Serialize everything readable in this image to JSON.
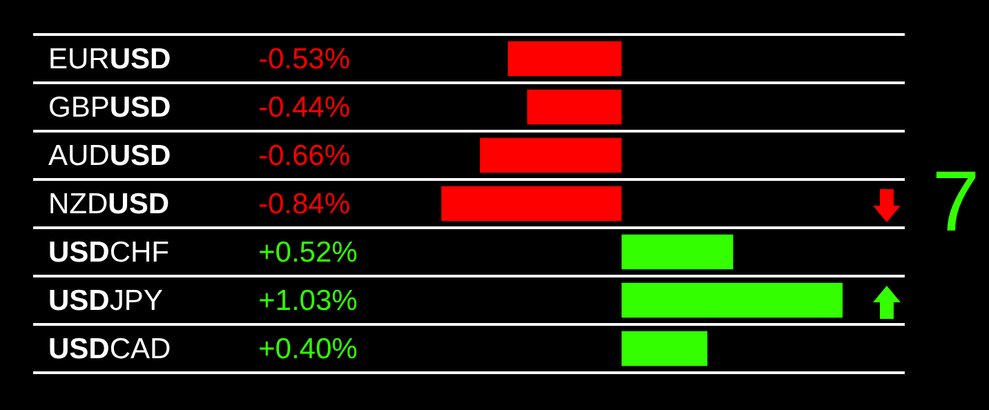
{
  "chart_data": {
    "type": "bar",
    "orientation": "horizontal",
    "categories": [
      "EURUSD",
      "GBPUSD",
      "AUDUSD",
      "NZDUSD",
      "USDCHF",
      "USDJPY",
      "USDCAD"
    ],
    "values": [
      -0.53,
      -0.44,
      -0.66,
      -0.84,
      0.52,
      1.03,
      0.4
    ],
    "value_labels": [
      "-0.53%",
      "-0.44%",
      "-0.66%",
      "-0.84%",
      "+0.52%",
      "+1.03%",
      "+0.40%"
    ],
    "colors": [
      "#ff0000",
      "#ff0000",
      "#ff0000",
      "#ff0000",
      "#33ff00",
      "#33ff00",
      "#33ff00"
    ],
    "grid": "y",
    "legend": false,
    "annotations": [
      "7"
    ]
  }
}
